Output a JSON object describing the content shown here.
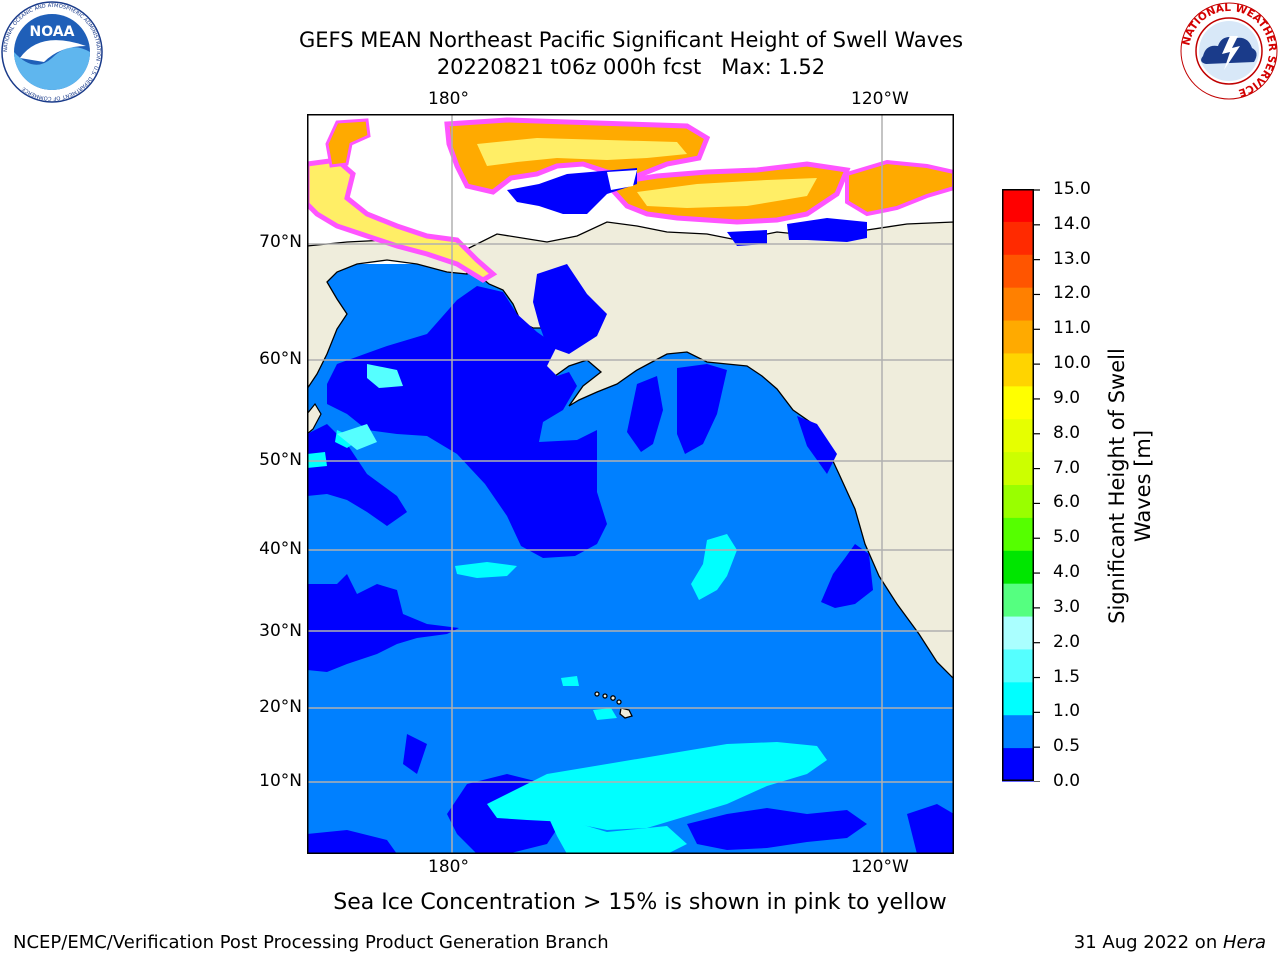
{
  "title_line1": "GEFS MEAN Northeast Pacific Significant Height of Swell Waves",
  "title_line2": "20220821 t06z 000h fcst   Max: 1.52",
  "logo_left_text": "NOAA",
  "logo_left_ring_text": "NATIONAL OCEANIC AND ATMOSPHERIC ADMINISTRATION · U.S. DEPARTMENT OF COMMERCE",
  "logo_right_ring_text": "NATIONAL WEATHER SERVICE",
  "map": {
    "lon_labels_top": [
      "180°",
      "120°W"
    ],
    "lon_labels_bottom": [
      "180°",
      "120°W"
    ],
    "lat_labels": [
      "70°N",
      "60°N",
      "50°N",
      "40°N",
      "30°N",
      "20°N",
      "10°N"
    ],
    "colors": {
      "land": "#efeddc",
      "ocean_0_05": "#0000ff",
      "ocean_05_1": "#0080ff",
      "ocean_1_15": "#00ffff",
      "ocean_15_2": "#55ffff",
      "ice_pink": "#ff55ff",
      "ice_orange": "#ffaa00",
      "ice_yellow": "#ffee66",
      "grid": "#b0b0b0"
    }
  },
  "colorbar": {
    "label": "Significant Height of Swell Waves [m]",
    "label_line1": "Significant Height of Swell",
    "label_line2": "Waves [m]",
    "ticks": [
      "15.0",
      "14.0",
      "13.0",
      "12.0",
      "11.0",
      "10.0",
      "9.0",
      "8.0",
      "7.0",
      "6.0",
      "5.0",
      "4.0",
      "3.0",
      "2.0",
      "1.5",
      "1.0",
      "0.5",
      "0.0"
    ],
    "colors_top_to_bottom": [
      "#ff0000",
      "#ff2a00",
      "#ff5500",
      "#ff8000",
      "#ffaa00",
      "#ffd400",
      "#ffff00",
      "#e6ff00",
      "#ccff00",
      "#99ff00",
      "#55ff00",
      "#00e600",
      "#55ff80",
      "#aaffff",
      "#55ffff",
      "#00ffff",
      "#0080ff",
      "#0000ff"
    ]
  },
  "caption": "Sea Ice Concentration > 15% is shown in pink to yellow",
  "footer_left": "NCEP/EMC/Verification Post Processing Product Generation Branch",
  "footer_right_prefix": "31 Aug 2022 on ",
  "footer_right_host": "Hera"
}
